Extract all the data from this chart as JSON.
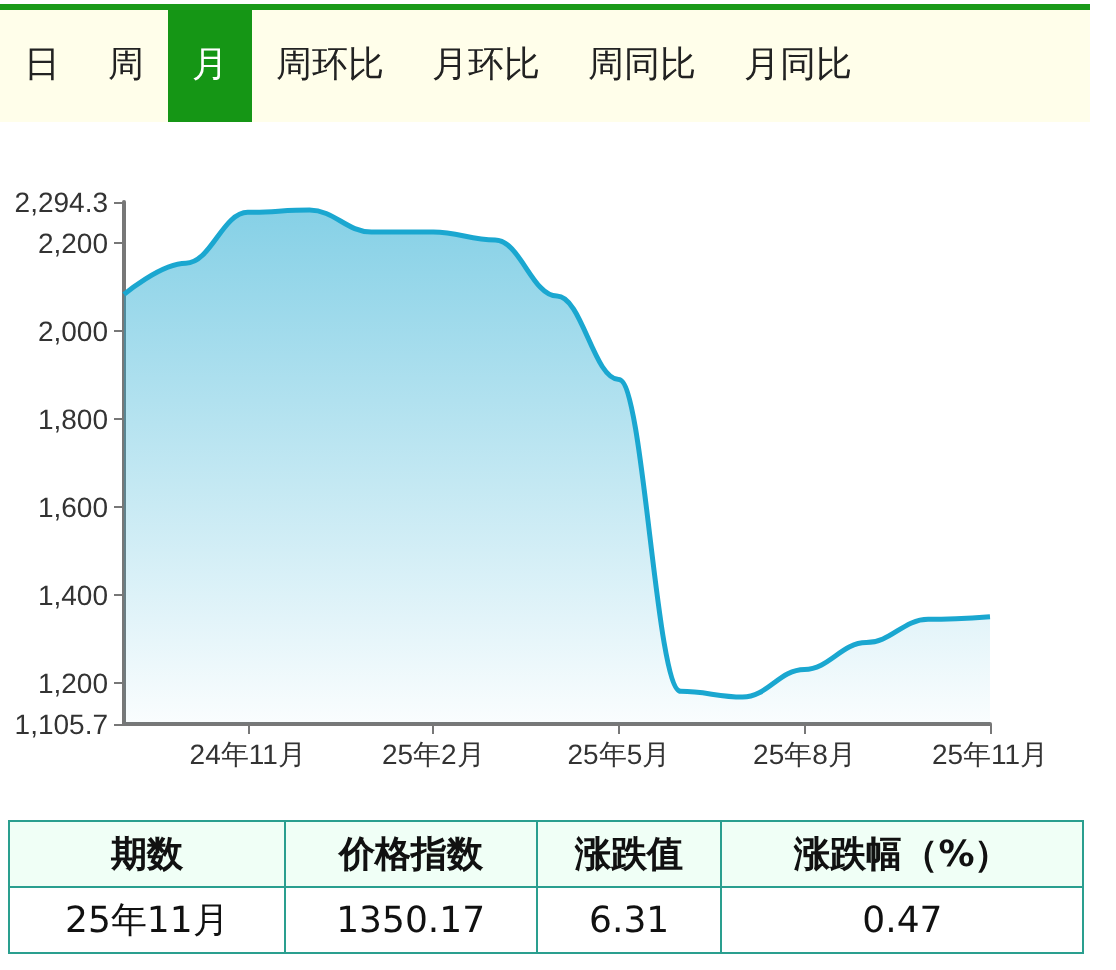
{
  "chart_data": {
    "type": "area",
    "categories": [
      null,
      null,
      "24年11月",
      null,
      null,
      "25年2月",
      null,
      null,
      "25年5月",
      null,
      null,
      "25年8月",
      null,
      null,
      "25年11月"
    ],
    "values": [
      2084,
      2155,
      2271,
      2276,
      2226,
      2226,
      2208,
      2080,
      1890,
      1180,
      1167,
      1230,
      1291,
      1344,
      1350
    ],
    "color": "#1aa7d0",
    "ylim": [
      1105.7,
      2294.3
    ],
    "yticks": [
      {
        "value": 1105.7,
        "label": "1,105.7"
      },
      {
        "value": 1200,
        "label": "1,200"
      },
      {
        "value": 1400,
        "label": "1,400"
      },
      {
        "value": 1600,
        "label": "1,600"
      },
      {
        "value": 1800,
        "label": "1,800"
      },
      {
        "value": 2000,
        "label": "2,000"
      },
      {
        "value": 2200,
        "label": "2,200"
      },
      {
        "value": 2294.3,
        "label": "2,294.3"
      }
    ],
    "grid": false,
    "annotations": [
      "日",
      "周",
      "月",
      "周环比",
      "月环比",
      "周同比",
      "月同比",
      "期数",
      "价格指数",
      "涨跌值",
      "涨跌幅（%）",
      "25年11月",
      "1350.17",
      "6.31",
      "0.47"
    ]
  }
}
